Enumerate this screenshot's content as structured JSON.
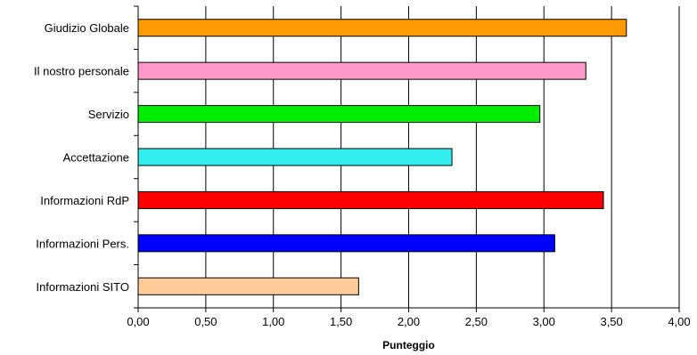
{
  "chart_data": {
    "type": "bar",
    "orientation": "horizontal",
    "categories": [
      "Giudizio Globale",
      "Il nostro personale",
      "Servizio",
      "Accettazione",
      "Informazioni RdP",
      "Informazioni Pers.",
      "Informazioni SITO"
    ],
    "values": [
      3.61,
      3.31,
      2.97,
      2.32,
      3.44,
      3.08,
      1.63
    ],
    "bar_colors": [
      "#ff9900",
      "#ff99cc",
      "#00ee00",
      "#33eeee",
      "#ff0000",
      "#0000ff",
      "#ffcc99"
    ],
    "xlabel": "Punteggio",
    "xlim": [
      0,
      4
    ],
    "ticks": [
      "0,00",
      "0,50",
      "1,00",
      "1,50",
      "2,00",
      "2,50",
      "3,00",
      "3,50",
      "4,00"
    ],
    "grid": "vertical",
    "legend": "none"
  }
}
